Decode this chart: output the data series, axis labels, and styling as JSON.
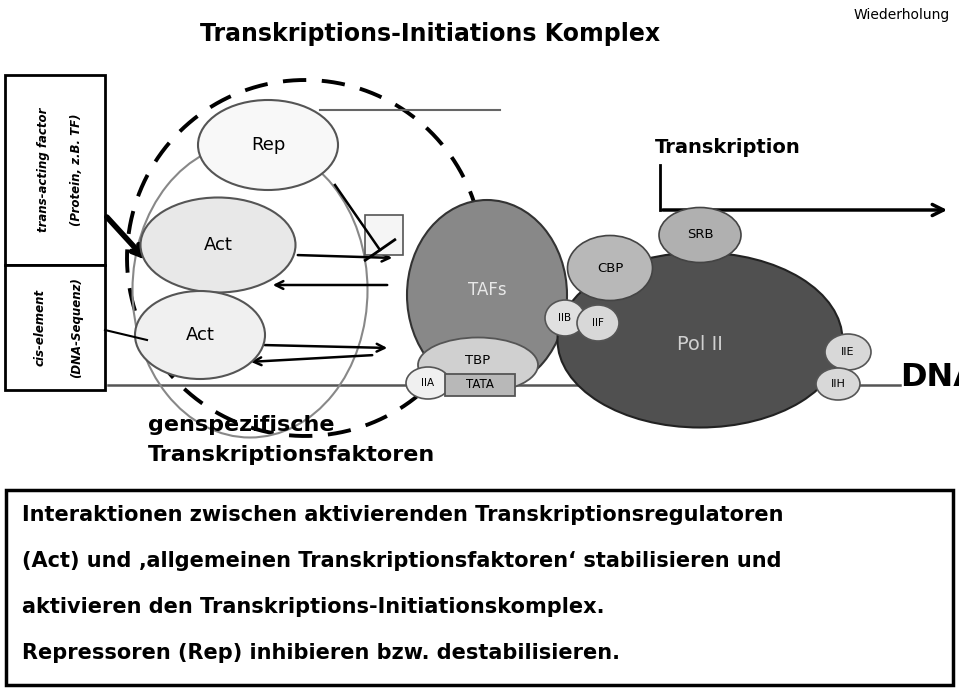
{
  "title": "Transkriptions-Initiations Komplex",
  "wiederholung": "Wiederholung",
  "transkription_label": "Transkription",
  "dna_label": "DNA",
  "genspe_line1": "genspezifische",
  "genspe_line2": "Transkriptionsfaktoren",
  "trans_acting_line1": "trans-acting factor",
  "trans_acting_line2": "(Protein, z.B. TF)",
  "cis_element_line1": "cis-element",
  "cis_element_line2": "(DNA-Sequenz)",
  "text_line1": "Interaktionen zwischen aktivierenden Transkriptionsregulatoren",
  "text_line2": "(Act) und ‚allgemeinen Transkriptionsfaktoren‘ stabilisieren und",
  "text_line3": "aktivieren den Transkriptions-Initiationskomplex.",
  "text_line4": "Repressoren (Rep) inhibieren bzw. destabilisieren.",
  "bg_color": "#ffffff",
  "text_color": "#000000"
}
